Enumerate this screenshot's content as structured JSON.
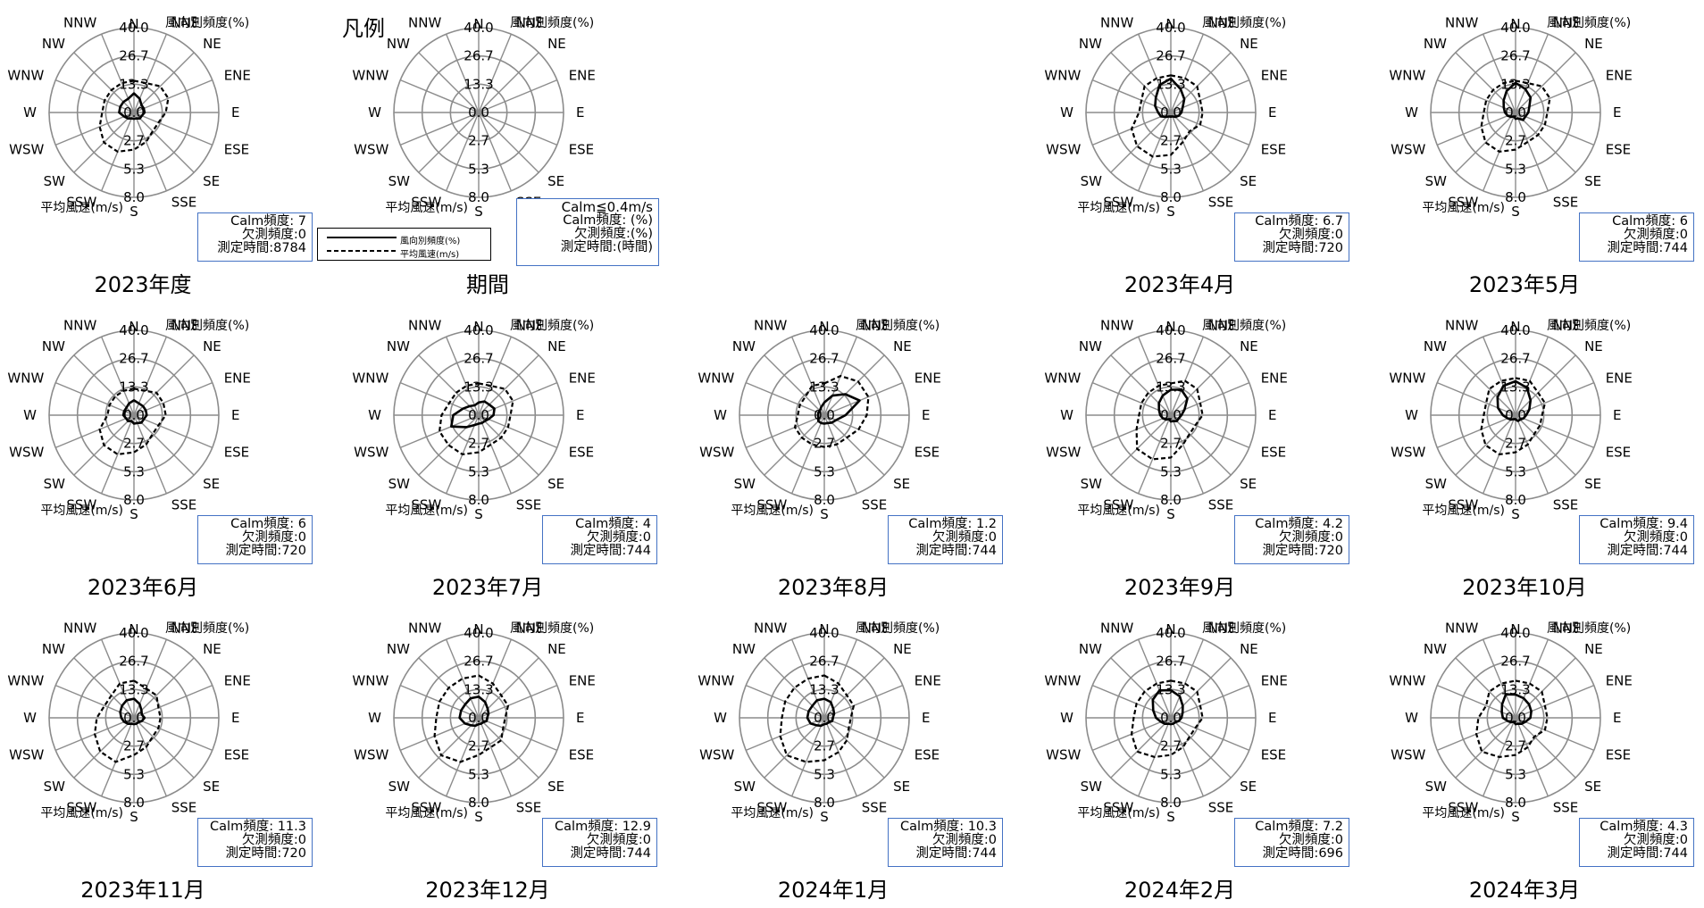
{
  "common": {
    "directions": [
      "N",
      "NNE",
      "NE",
      "ENE",
      "E",
      "ESE",
      "SE",
      "SSE",
      "S",
      "SSW",
      "SW",
      "WSW",
      "W",
      "WNW",
      "NW",
      "NNW"
    ],
    "freq_label": "風向別頻度(%)",
    "speed_label": "平均風速(m/s)",
    "freq_ticks": [
      "0.0",
      "13.3",
      "26.7",
      "40.0"
    ],
    "speed_ticks": [
      "2.7",
      "5.3",
      "8.0"
    ],
    "freq_max": 40,
    "speed_max": 8
  },
  "legend": {
    "title": "凡例",
    "freq_line": "風向別頻度(%)",
    "speed_line": "平均風速(m/s)"
  },
  "chart_data": [
    {
      "id": "p2023",
      "title": "2023年度",
      "type": "radar",
      "info": [
        "Calm頻度: 7",
        "欠測頻度:0",
        "測定時間:8784"
      ],
      "freq": [
        9,
        7,
        5,
        5,
        5,
        4,
        4,
        3,
        3,
        3,
        4,
        5,
        7,
        7,
        7,
        7
      ],
      "speed": [
        3,
        3,
        3.5,
        3.5,
        3,
        2.5,
        2.5,
        3,
        3.5,
        4,
        4,
        3.5,
        3,
        3,
        3,
        3
      ]
    },
    {
      "id": "legend",
      "title": "期間",
      "type": "radar",
      "info": [
        "Calm≦0.4m/s",
        "Calm頻度: (%)",
        "欠測頻度:(%)",
        "測定時間:(時間)"
      ],
      "freq": [],
      "speed": []
    },
    {
      "id": "p2023_04",
      "title": "2023年4月",
      "type": "radar",
      "info": [
        "Calm頻度: 6.7",
        "欠測頻度:0",
        "測定時間:720"
      ],
      "freq": [
        16,
        12,
        9,
        6,
        5,
        4,
        3,
        2,
        2,
        2,
        3,
        5,
        6,
        8,
        10,
        14
      ],
      "speed": [
        3.5,
        3.5,
        3.5,
        3,
        3,
        3,
        2.5,
        3,
        4,
        4.5,
        4.5,
        4,
        3,
        3,
        3.5,
        3.5
      ]
    },
    {
      "id": "p2023_05",
      "title": "2023年5月",
      "type": "radar",
      "info": [
        "Calm頻度: 6",
        "欠測頻度:0",
        "測定時間:744"
      ],
      "freq": [
        14,
        12,
        10,
        7,
        6,
        5,
        5,
        3,
        3,
        2,
        3,
        4,
        5,
        6,
        8,
        11
      ],
      "speed": [
        3,
        3,
        3.5,
        3.5,
        3,
        3,
        3,
        3,
        3.5,
        4,
        4,
        3.5,
        3,
        3,
        3,
        3
      ]
    },
    {
      "id": "p2023_06",
      "title": "2023年6月",
      "type": "radar",
      "info": [
        "Calm頻度: 6",
        "欠測頻度:0",
        "測定時間:720"
      ],
      "freq": [
        7,
        6,
        6,
        6,
        6,
        5,
        5,
        4,
        4,
        3,
        4,
        4,
        5,
        5,
        5,
        6
      ],
      "speed": [
        2.5,
        2.5,
        3,
        3,
        3,
        2.5,
        2.5,
        3,
        3.5,
        4,
        4,
        3.5,
        2.5,
        2.5,
        2.5,
        2.5
      ]
    },
    {
      "id": "p2023_07",
      "title": "2023年7月",
      "type": "radar",
      "info": [
        "Calm頻度: 4",
        "欠測頻度:0",
        "測定時間:744"
      ],
      "freq": [
        6,
        7,
        7,
        8,
        7,
        5,
        4,
        4,
        4,
        5,
        8,
        14,
        12,
        8,
        6,
        5
      ],
      "speed": [
        3,
        3,
        3.5,
        3.5,
        3,
        3,
        3,
        3,
        3.5,
        4,
        4,
        4,
        3.5,
        3,
        3,
        3
      ]
    },
    {
      "id": "p2023_08",
      "title": "2023年8月",
      "type": "radar",
      "info": [
        "Calm頻度: 1.2",
        "欠測頻度:0",
        "測定時間:744"
      ],
      "freq": [
        6,
        10,
        14,
        18,
        10,
        6,
        5,
        4,
        4,
        4,
        4,
        3,
        3,
        3,
        3,
        4
      ],
      "speed": [
        3,
        4,
        4.5,
        4.5,
        4,
        3.5,
        3,
        3,
        3,
        3,
        3,
        3,
        2.5,
        2.5,
        2.5,
        3
      ]
    },
    {
      "id": "p2023_09",
      "title": "2023年9月",
      "type": "radar",
      "info": [
        "Calm頻度: 4.2",
        "欠測頻度:0",
        "測定時間:720"
      ],
      "freq": [
        12,
        13,
        11,
        7,
        5,
        4,
        4,
        3,
        3,
        2,
        3,
        4,
        5,
        6,
        8,
        10
      ],
      "speed": [
        3,
        3.5,
        3.5,
        3,
        3,
        2.5,
        2.5,
        3,
        4,
        4.5,
        4.5,
        3.5,
        3,
        3,
        3,
        3
      ]
    },
    {
      "id": "p2023_10",
      "title": "2023年10月",
      "type": "radar",
      "info": [
        "Calm頻度: 9.4",
        "欠測頻度:0",
        "測定時間:744"
      ],
      "freq": [
        16,
        14,
        10,
        7,
        5,
        4,
        3,
        3,
        2,
        2,
        3,
        4,
        6,
        9,
        12,
        15
      ],
      "speed": [
        3.5,
        3.5,
        3,
        3,
        2.5,
        2.5,
        2.5,
        3,
        3.5,
        4,
        4,
        3.5,
        3,
        3,
        3.5,
        3.5
      ]
    },
    {
      "id": "p2023_11",
      "title": "2023年11月",
      "type": "radar",
      "info": [
        "Calm頻度: 11.3",
        "欠測頻度:0",
        "測定時間:720"
      ],
      "freq": [
        9,
        7,
        5,
        4,
        5,
        4,
        3,
        3,
        3,
        3,
        4,
        5,
        6,
        7,
        8,
        9
      ],
      "speed": [
        3.5,
        3,
        3,
        2.5,
        2.5,
        2.5,
        2.5,
        3,
        3.5,
        4.5,
        4.5,
        4,
        3.5,
        3,
        3,
        3.5
      ]
    },
    {
      "id": "p2023_12",
      "title": "2023年12月",
      "type": "radar",
      "info": [
        "Calm頻度: 12.9",
        "欠測頻度:0",
        "測定時間:744"
      ],
      "freq": [
        10,
        8,
        6,
        5,
        4,
        4,
        3,
        3,
        3,
        4,
        5,
        7,
        9,
        9,
        9,
        10
      ],
      "speed": [
        4,
        3.5,
        3,
        3,
        2.5,
        2.5,
        3,
        3,
        3.5,
        4.5,
        5,
        4.5,
        4,
        4,
        4,
        4
      ]
    },
    {
      "id": "p2024_01",
      "title": "2024年1月",
      "type": "radar",
      "info": [
        "Calm頻度: 10.3",
        "欠測頻度:0",
        "測定時間:744"
      ],
      "freq": [
        9,
        8,
        6,
        5,
        4,
        4,
        3,
        3,
        3,
        4,
        5,
        7,
        8,
        8,
        8,
        9
      ],
      "speed": [
        4,
        3.5,
        3,
        3,
        2.5,
        2.5,
        3,
        3.5,
        4,
        4.5,
        5,
        4.5,
        4,
        4,
        4,
        4
      ]
    },
    {
      "id": "p2024_02",
      "title": "2024年2月",
      "type": "radar",
      "info": [
        "Calm頻度: 7.2",
        "欠測頻度:0",
        "測定時間:696"
      ],
      "freq": [
        13,
        11,
        8,
        6,
        5,
        4,
        3,
        3,
        3,
        3,
        4,
        5,
        7,
        9,
        12,
        14
      ],
      "speed": [
        3.5,
        3.5,
        3.5,
        3,
        3,
        2.5,
        2.5,
        3,
        3.5,
        4,
        4.5,
        4,
        3.5,
        3.5,
        3.5,
        3.5
      ]
    },
    {
      "id": "p2024_03",
      "title": "2024年3月",
      "type": "radar",
      "info": [
        "Calm頻度: 4.3",
        "欠測頻度:0",
        "測定時間:744"
      ],
      "freq": [
        11,
        10,
        9,
        8,
        7,
        5,
        4,
        3,
        3,
        2,
        3,
        4,
        6,
        7,
        9,
        12
      ],
      "speed": [
        3.5,
        3.5,
        3.5,
        3,
        3,
        3,
        2.5,
        3,
        3.5,
        4,
        4.5,
        4,
        3.5,
        3,
        3.5,
        3.5
      ]
    }
  ]
}
